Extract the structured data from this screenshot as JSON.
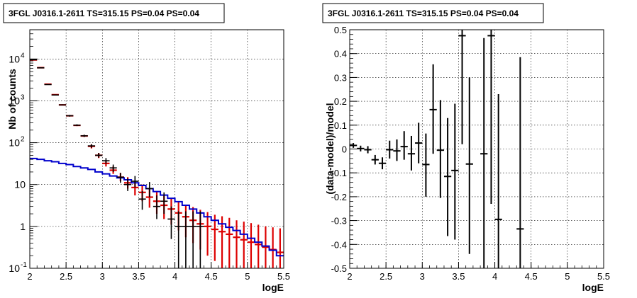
{
  "chart_data": [
    {
      "type": "scatter",
      "title": "3FGL J0316.1-2611 TS=315.15 PS=0.04 PS=0.04",
      "xlabel": "logE",
      "ylabel": "Nb of counts",
      "xlim": [
        2,
        5.5
      ],
      "ylim": [
        0.1,
        50000
      ],
      "yscale": "log",
      "grid": true,
      "xticks": [
        "2",
        "2.5",
        "3",
        "3.5",
        "4",
        "4.5",
        "5",
        "5.5"
      ],
      "yticks": [
        {
          "v": 0.1,
          "label": "10",
          "exp": "-1"
        },
        {
          "v": 1,
          "label": "1",
          "exp": ""
        },
        {
          "v": 10,
          "label": "10",
          "exp": ""
        },
        {
          "v": 100,
          "label": "10",
          "exp": "2"
        },
        {
          "v": 1000,
          "label": "10",
          "exp": "3"
        },
        {
          "v": 10000,
          "label": "10",
          "exp": "4"
        }
      ],
      "bin_width": 0.1,
      "series": [
        {
          "role": "model_total",
          "color": "#dd0000",
          "points": [
            {
              "x": 2.05,
              "y": 9500,
              "lo": 9300,
              "hi": 9700
            },
            {
              "x": 2.15,
              "y": 6200,
              "lo": 6050,
              "hi": 6350
            },
            {
              "x": 2.25,
              "y": 2500,
              "lo": 2450,
              "hi": 2550
            },
            {
              "x": 2.35,
              "y": 1400,
              "lo": 1370,
              "hi": 1430
            },
            {
              "x": 2.45,
              "y": 800,
              "lo": 780,
              "hi": 820
            },
            {
              "x": 2.55,
              "y": 440,
              "lo": 425,
              "hi": 455
            },
            {
              "x": 2.65,
              "y": 260,
              "lo": 250,
              "hi": 270
            },
            {
              "x": 2.75,
              "y": 145,
              "lo": 137,
              "hi": 153
            },
            {
              "x": 2.85,
              "y": 82,
              "lo": 73,
              "hi": 91
            },
            {
              "x": 2.95,
              "y": 50,
              "lo": 43,
              "hi": 57
            },
            {
              "x": 3.05,
              "y": 32,
              "lo": 27,
              "hi": 38
            },
            {
              "x": 3.15,
              "y": 22,
              "lo": 18,
              "hi": 27
            },
            {
              "x": 3.25,
              "y": 15,
              "lo": 12,
              "hi": 19
            },
            {
              "x": 3.35,
              "y": 11,
              "lo": 8,
              "hi": 15
            },
            {
              "x": 3.45,
              "y": 8.5,
              "lo": 5.5,
              "hi": 12
            },
            {
              "x": 3.55,
              "y": 6.5,
              "lo": 4,
              "hi": 10
            },
            {
              "x": 3.65,
              "y": 5,
              "lo": 2.8,
              "hi": 8
            },
            {
              "x": 3.75,
              "y": 4,
              "lo": 2,
              "hi": 6.6
            },
            {
              "x": 3.85,
              "y": 3.2,
              "lo": 1.5,
              "hi": 5.5
            },
            {
              "x": 3.95,
              "y": 2.6,
              "lo": 1.1,
              "hi": 4.6
            },
            {
              "x": 4.05,
              "y": 2.1,
              "lo": 0.8,
              "hi": 3.9
            },
            {
              "x": 4.15,
              "y": 1.7,
              "lo": 0.55,
              "hi": 3.3
            },
            {
              "x": 4.25,
              "y": 1.4,
              "lo": 0.4,
              "hi": 2.9
            },
            {
              "x": 4.35,
              "y": 1.15,
              "lo": 0.28,
              "hi": 2.5
            },
            {
              "x": 4.45,
              "y": 1.0,
              "lo": 0.2,
              "hi": 2.2
            },
            {
              "x": 4.55,
              "y": 0.85,
              "lo": 0.15,
              "hi": 1.9
            },
            {
              "x": 4.65,
              "y": 0.75,
              "lo": 0.1,
              "hi": 1.75
            },
            {
              "x": 4.75,
              "y": 0.65,
              "lo": 0.1,
              "hi": 1.6
            },
            {
              "x": 4.85,
              "y": 0.55,
              "lo": 0.1,
              "hi": 1.4
            },
            {
              "x": 4.95,
              "y": 0.48,
              "lo": 0.1,
              "hi": 1.3
            },
            {
              "x": 5.05,
              "y": 0.42,
              "lo": 0.1,
              "hi": 1.2
            },
            {
              "x": 5.15,
              "y": 0.37,
              "lo": 0.1,
              "hi": 1.1
            },
            {
              "x": 5.25,
              "y": 0.32,
              "lo": 0.1,
              "hi": 1.0
            },
            {
              "x": 5.35,
              "y": 0.28,
              "lo": 0.1,
              "hi": 0.95
            },
            {
              "x": 5.45,
              "y": 0.24,
              "lo": 0.1,
              "hi": 0.9
            }
          ]
        },
        {
          "role": "source_model",
          "color": "#0000cc",
          "step_x": [
            2.0,
            2.1,
            2.2,
            2.3,
            2.4,
            2.5,
            2.6,
            2.7,
            2.8,
            2.9,
            3.0,
            3.1,
            3.2,
            3.3,
            3.4,
            3.5,
            3.6,
            3.7,
            3.8,
            3.9,
            4.0,
            4.1,
            4.2,
            4.3,
            4.4,
            4.5,
            4.6,
            4.7,
            4.8,
            4.9,
            5.0,
            5.1,
            5.2,
            5.3,
            5.4,
            5.5
          ],
          "values": [
            42,
            40,
            37,
            35,
            32,
            30,
            27,
            25,
            23,
            20,
            18,
            16,
            14.5,
            13,
            11,
            9.5,
            8,
            6.8,
            5.6,
            4.7,
            3.9,
            3.2,
            2.6,
            2.1,
            1.7,
            1.4,
            1.15,
            0.95,
            0.8,
            0.65,
            0.52,
            0.42,
            0.34,
            0.27,
            0.2
          ]
        },
        {
          "role": "data",
          "color": "#000000",
          "points": [
            {
              "x": 2.05,
              "y": 9600,
              "lo": 9400,
              "hi": 9800
            },
            {
              "x": 2.15,
              "y": 6150,
              "lo": 6000,
              "hi": 6300
            },
            {
              "x": 2.25,
              "y": 2450,
              "lo": 2400,
              "hi": 2500
            },
            {
              "x": 2.35,
              "y": 1380,
              "lo": 1340,
              "hi": 1420
            },
            {
              "x": 2.45,
              "y": 800,
              "lo": 775,
              "hi": 825
            },
            {
              "x": 2.55,
              "y": 440,
              "lo": 420,
              "hi": 460
            },
            {
              "x": 2.65,
              "y": 262,
              "lo": 250,
              "hi": 275
            },
            {
              "x": 2.75,
              "y": 146,
              "lo": 137,
              "hi": 155
            },
            {
              "x": 2.85,
              "y": 84,
              "lo": 76,
              "hi": 92
            },
            {
              "x": 2.95,
              "y": 50,
              "lo": 44,
              "hi": 57
            },
            {
              "x": 3.05,
              "y": 37,
              "lo": 31,
              "hi": 43
            },
            {
              "x": 3.15,
              "y": 25,
              "lo": 20,
              "hi": 30
            },
            {
              "x": 3.25,
              "y": 15,
              "lo": 11,
              "hi": 19
            },
            {
              "x": 3.35,
              "y": 10,
              "lo": 7,
              "hi": 14
            },
            {
              "x": 3.45,
              "y": 12,
              "lo": 8.5,
              "hi": 16
            },
            {
              "x": 3.55,
              "y": 4.5,
              "lo": 2.5,
              "hi": 7
            },
            {
              "x": 3.65,
              "y": 8,
              "lo": 5,
              "hi": 11.5
            },
            {
              "x": 3.75,
              "y": 3,
              "lo": 1.5,
              "hi": 5.5
            },
            {
              "x": 3.85,
              "y": 4,
              "lo": 2,
              "hi": 6.5
            },
            {
              "x": 3.95,
              "y": 1.5,
              "lo": 0.5,
              "hi": 3
            },
            {
              "x": 4.05,
              "y": 1.0,
              "lo": 0.1,
              "hi": 2.3
            },
            {
              "x": 4.15,
              "y": 1.0,
              "lo": 0.1,
              "hi": 2.3
            },
            {
              "x": 4.25,
              "y": 1.0,
              "lo": 0.1,
              "hi": 2.3
            },
            {
              "x": 4.35,
              "y": 1.0,
              "lo": 0.1,
              "hi": 2.3
            }
          ]
        }
      ]
    },
    {
      "type": "scatter",
      "title": "3FGL J0316.1-2611 TS=315.15 PS=0.04 PS=0.04",
      "xlabel": "logE",
      "ylabel": "(data-model)/model",
      "xlim": [
        2,
        5.5
      ],
      "ylim": [
        -0.5,
        0.5
      ],
      "grid": true,
      "xticks": [
        "2",
        "2.5",
        "3",
        "3.5",
        "4",
        "4.5",
        "5",
        "5.5"
      ],
      "yticks": [
        "-0.5",
        "-0.4",
        "-0.3",
        "-0.2",
        "-0.1",
        "0",
        "0.1",
        "0.2",
        "0.3",
        "0.4",
        "0.5"
      ],
      "bin_width": 0.1,
      "series": [
        {
          "role": "residuals",
          "color": "#000000",
          "points": [
            {
              "x": 2.05,
              "y": 0.015,
              "lo": 0.005,
              "hi": 0.025
            },
            {
              "x": 2.15,
              "y": 0.002,
              "lo": -0.01,
              "hi": 0.014
            },
            {
              "x": 2.25,
              "y": -0.003,
              "lo": -0.018,
              "hi": 0.012
            },
            {
              "x": 2.35,
              "y": -0.045,
              "lo": -0.065,
              "hi": -0.025
            },
            {
              "x": 2.45,
              "y": -0.06,
              "lo": -0.085,
              "hi": -0.035
            },
            {
              "x": 2.55,
              "y": -0.003,
              "lo": -0.04,
              "hi": 0.035
            },
            {
              "x": 2.65,
              "y": -0.008,
              "lo": -0.05,
              "hi": 0.04
            },
            {
              "x": 2.75,
              "y": 0.01,
              "lo": -0.045,
              "hi": 0.075
            },
            {
              "x": 2.85,
              "y": -0.02,
              "lo": -0.09,
              "hi": 0.055
            },
            {
              "x": 2.95,
              "y": 0.025,
              "lo": -0.06,
              "hi": 0.11
            },
            {
              "x": 3.05,
              "y": -0.065,
              "lo": -0.2,
              "hi": 0.065
            },
            {
              "x": 3.15,
              "y": 0.165,
              "lo": -0.02,
              "hi": 0.355
            },
            {
              "x": 3.25,
              "y": -0.005,
              "lo": -0.205,
              "hi": 0.205
            },
            {
              "x": 3.35,
              "y": -0.115,
              "lo": -0.365,
              "hi": 0.13
            },
            {
              "x": 3.45,
              "y": -0.09,
              "lo": -0.38,
              "hi": 0.19
            },
            {
              "x": 3.55,
              "y": 0.475,
              "lo": 0.02,
              "hi": 0.5
            },
            {
              "x": 3.65,
              "y": -0.063,
              "lo": -0.44,
              "hi": 0.3
            },
            {
              "x": 3.85,
              "y": -0.02,
              "lo": -0.5,
              "hi": 0.465
            },
            {
              "x": 3.95,
              "y": 0.475,
              "lo": -0.23,
              "hi": 0.5
            },
            {
              "x": 4.05,
              "y": -0.295,
              "lo": -0.5,
              "hi": 0.23
            },
            {
              "x": 4.35,
              "y": -0.335,
              "lo": -0.5,
              "hi": 0.385
            }
          ]
        }
      ]
    }
  ]
}
